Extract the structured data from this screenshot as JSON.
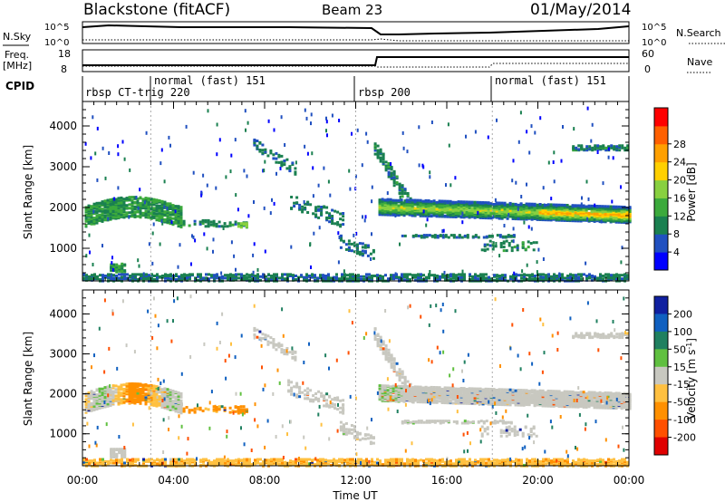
{
  "header": {
    "station": "Blackstone (fitACF)",
    "beam": "Beam 23",
    "date": "01/May/2014"
  },
  "top_panels": {
    "n_sky_label": "N.Sky",
    "n_sky_ticks": [
      "10^5",
      "10^0"
    ],
    "n_search_label": "N.Search",
    "n_search_ticks": [
      "10^5",
      "10^0"
    ],
    "freq_label": "Freq.",
    "freq_unit": "[MHz]",
    "freq_ticks": [
      "18",
      "8"
    ],
    "nave_label": "Nave",
    "nave_ticks": [
      "60",
      "0"
    ],
    "cpid_label": "CPID",
    "cpid_entries": [
      {
        "label": "rbsp CT-trig 220",
        "start_hour": 0,
        "row": 1
      },
      {
        "label": "normal (fast) 151",
        "start_hour": 3,
        "row": 0
      },
      {
        "label": "rbsp 200",
        "start_hour": 12,
        "row": 1
      },
      {
        "label": "normal (fast) 151",
        "start_hour": 18,
        "row": 0
      }
    ]
  },
  "chart_data": [
    {
      "type": "heatmap",
      "panel": "power",
      "ylabel": "Slant Range [km]",
      "xlim": [
        0,
        24
      ],
      "ylim": [
        200,
        4600
      ],
      "yticks": [
        "4000",
        "3000",
        "2000",
        "1000"
      ],
      "colorbar": {
        "label": "Power [dB]",
        "ticks": [
          "28",
          "24",
          "20",
          "16",
          "12",
          "8",
          "4"
        ],
        "colors": [
          "#0000ff",
          "#2050c0",
          "#1a8050",
          "#3caa3c",
          "#88d040",
          "#ffd000",
          "#ffa000",
          "#ff6000",
          "#ff0000"
        ]
      },
      "features": [
        {
          "name": "morning echo band",
          "x": [
            0,
            4.2
          ],
          "y_center": 1800,
          "dominant_db": 8
        },
        {
          "name": "main afternoon band",
          "x": [
            13,
            24
          ],
          "y_center": 2000,
          "dominant_db": 16
        },
        {
          "name": "descending feature",
          "x": [
            7.5,
            9.5
          ],
          "y_center": 3300,
          "dominant_db": 6
        }
      ]
    },
    {
      "type": "heatmap",
      "panel": "velocity",
      "ylabel": "Slant Range [km]",
      "xlabel": "Time UT",
      "xlim": [
        0,
        24
      ],
      "ylim": [
        200,
        4600
      ],
      "yticks": [
        "4000",
        "3000",
        "2000",
        "1000"
      ],
      "xticks": [
        "00:00",
        "04:00",
        "08:00",
        "12:00",
        "16:00",
        "20:00",
        "00:00"
      ],
      "colorbar": {
        "label": "Velocity [m s-1]",
        "ticks": [
          "200",
          "100",
          "50",
          "15",
          "-15",
          "-50",
          "-100",
          "-200"
        ],
        "colors": [
          "#1020a0",
          "#1060c0",
          "#208060",
          "#60c040",
          "#c8c8c0",
          "#ffc040",
          "#ff9000",
          "#ff5000",
          "#e00000"
        ]
      },
      "features": [
        {
          "name": "ground scatter",
          "x": [
            13,
            24
          ],
          "y_center": 2000,
          "velocity": 0
        },
        {
          "name": "morning flow",
          "x": [
            0,
            4.2
          ],
          "y_center": 1850,
          "velocity": -50
        }
      ]
    }
  ]
}
